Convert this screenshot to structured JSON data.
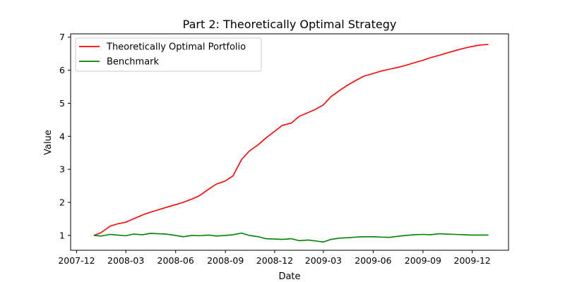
{
  "chart_data": {
    "type": "line",
    "title": "Part 2: Theoretically Optimal Strategy",
    "xlabel": "Date",
    "ylabel": "Value",
    "xlim": [
      "2007-11-20",
      "2010-02-06"
    ],
    "ylim": [
      0.55,
      7.1
    ],
    "x_ticks": [
      "2007-12-01",
      "2008-03-01",
      "2008-06-01",
      "2008-09-01",
      "2008-12-01",
      "2009-03-01",
      "2009-06-01",
      "2009-09-01",
      "2009-12-01"
    ],
    "x_tick_labels": [
      "2007-12",
      "2008-03",
      "2008-06",
      "2008-09",
      "2008-12",
      "2009-03",
      "2009-06",
      "2009-09",
      "2009-12"
    ],
    "y_ticks": [
      1,
      2,
      3,
      4,
      5,
      6,
      7
    ],
    "y_tick_labels": [
      "1",
      "2",
      "3",
      "4",
      "5",
      "6",
      "7"
    ],
    "grid": false,
    "legend_position": "top-left",
    "series": [
      {
        "name": "Theoretically Optimal Portfolio",
        "color": "#ff0000",
        "x": [
          "2008-01-02",
          "2008-01-15",
          "2008-02-01",
          "2008-02-15",
          "2008-03-01",
          "2008-03-15",
          "2008-04-01",
          "2008-04-15",
          "2008-05-01",
          "2008-05-15",
          "2008-06-01",
          "2008-06-15",
          "2008-07-01",
          "2008-07-15",
          "2008-08-01",
          "2008-08-15",
          "2008-09-01",
          "2008-09-15",
          "2008-10-01",
          "2008-10-15",
          "2008-11-01",
          "2008-11-15",
          "2008-12-01",
          "2008-12-15",
          "2009-01-01",
          "2009-01-15",
          "2009-02-01",
          "2009-02-15",
          "2009-03-01",
          "2009-03-15",
          "2009-04-01",
          "2009-04-15",
          "2009-05-01",
          "2009-05-15",
          "2009-06-01",
          "2009-06-15",
          "2009-07-01",
          "2009-07-15",
          "2009-08-01",
          "2009-08-15",
          "2009-09-01",
          "2009-09-15",
          "2009-10-01",
          "2009-10-15",
          "2009-11-01",
          "2009-11-15",
          "2009-12-01",
          "2009-12-15",
          "2009-12-31"
        ],
        "values": [
          1.0,
          1.08,
          1.28,
          1.35,
          1.4,
          1.5,
          1.62,
          1.7,
          1.78,
          1.85,
          1.93,
          2.0,
          2.1,
          2.2,
          2.4,
          2.55,
          2.65,
          2.8,
          3.3,
          3.55,
          3.75,
          3.95,
          4.15,
          4.33,
          4.4,
          4.6,
          4.72,
          4.82,
          4.95,
          5.2,
          5.4,
          5.55,
          5.7,
          5.82,
          5.9,
          5.97,
          6.03,
          6.08,
          6.15,
          6.22,
          6.3,
          6.38,
          6.45,
          6.52,
          6.6,
          6.66,
          6.72,
          6.76,
          6.78
        ]
      },
      {
        "name": "Benchmark",
        "color": "#008000",
        "x": [
          "2008-01-02",
          "2008-01-15",
          "2008-02-01",
          "2008-02-15",
          "2008-03-01",
          "2008-03-15",
          "2008-04-01",
          "2008-04-15",
          "2008-05-01",
          "2008-05-15",
          "2008-06-01",
          "2008-06-15",
          "2008-07-01",
          "2008-07-15",
          "2008-08-01",
          "2008-08-15",
          "2008-09-01",
          "2008-09-15",
          "2008-10-01",
          "2008-10-15",
          "2008-11-01",
          "2008-11-15",
          "2008-12-01",
          "2008-12-15",
          "2009-01-01",
          "2009-01-15",
          "2009-02-01",
          "2009-02-15",
          "2009-03-01",
          "2009-03-15",
          "2009-04-01",
          "2009-04-15",
          "2009-05-01",
          "2009-05-15",
          "2009-06-01",
          "2009-06-15",
          "2009-07-01",
          "2009-07-15",
          "2009-08-01",
          "2009-08-15",
          "2009-09-01",
          "2009-09-15",
          "2009-10-01",
          "2009-10-15",
          "2009-11-01",
          "2009-11-15",
          "2009-12-01",
          "2009-12-15",
          "2009-12-31"
        ],
        "values": [
          1.0,
          0.98,
          1.03,
          1.01,
          0.99,
          1.04,
          1.02,
          1.06,
          1.05,
          1.04,
          1.0,
          0.96,
          1.0,
          0.99,
          1.01,
          0.98,
          1.0,
          1.02,
          1.07,
          1.0,
          0.96,
          0.9,
          0.89,
          0.88,
          0.9,
          0.84,
          0.86,
          0.83,
          0.8,
          0.88,
          0.92,
          0.93,
          0.95,
          0.96,
          0.96,
          0.95,
          0.94,
          0.97,
          1.0,
          1.02,
          1.03,
          1.02,
          1.05,
          1.04,
          1.03,
          1.02,
          1.01,
          1.01,
          1.01
        ]
      }
    ]
  }
}
